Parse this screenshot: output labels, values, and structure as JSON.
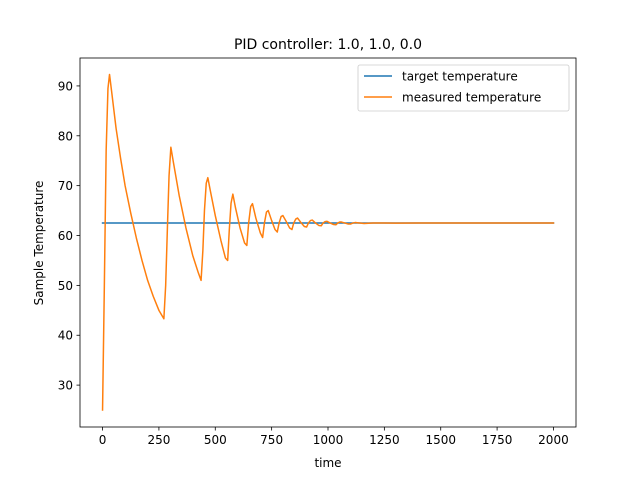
{
  "chart_data": {
    "type": "line",
    "title": "PID controller: 1.0, 1.0, 0.0",
    "xlabel": "time",
    "ylabel": "Sample Temperature",
    "xlim": [
      -100,
      2100
    ],
    "ylim": [
      21.6,
      95.6
    ],
    "xticks": [
      0,
      250,
      500,
      750,
      1000,
      1250,
      1500,
      1750,
      2000
    ],
    "yticks": [
      30,
      40,
      50,
      60,
      70,
      80,
      90
    ],
    "grid": false,
    "legend": "top-right",
    "series": [
      {
        "name": "target temperature",
        "color": "#1f77b4",
        "points": [
          [
            0,
            62.5
          ],
          [
            2000,
            62.5
          ]
        ]
      },
      {
        "name": "measured temperature",
        "color": "#ff7f0e",
        "points": [
          [
            0,
            25.0
          ],
          [
            8,
            50.0
          ],
          [
            16,
            77.0
          ],
          [
            24,
            89.5
          ],
          [
            31,
            92.3
          ],
          [
            40,
            89.0
          ],
          [
            60,
            81.5
          ],
          [
            80,
            75.5
          ],
          [
            100,
            70.0
          ],
          [
            125,
            64.5
          ],
          [
            150,
            59.5
          ],
          [
            175,
            55.0
          ],
          [
            200,
            51.0
          ],
          [
            225,
            47.8
          ],
          [
            250,
            45.0
          ],
          [
            272,
            43.3
          ],
          [
            280,
            50.0
          ],
          [
            288,
            62.0
          ],
          [
            295,
            72.0
          ],
          [
            303,
            77.7
          ],
          [
            315,
            74.5
          ],
          [
            340,
            68.0
          ],
          [
            370,
            61.5
          ],
          [
            400,
            56.0
          ],
          [
            425,
            52.5
          ],
          [
            437,
            51.0
          ],
          [
            445,
            57.0
          ],
          [
            452,
            65.0
          ],
          [
            460,
            70.5
          ],
          [
            467,
            71.6
          ],
          [
            478,
            69.0
          ],
          [
            500,
            64.0
          ],
          [
            525,
            59.0
          ],
          [
            545,
            55.5
          ],
          [
            555,
            55.0
          ],
          [
            562,
            61.0
          ],
          [
            570,
            66.5
          ],
          [
            578,
            68.3
          ],
          [
            590,
            65.5
          ],
          [
            610,
            61.5
          ],
          [
            630,
            58.5
          ],
          [
            640,
            58.0
          ],
          [
            648,
            62.5
          ],
          [
            657,
            65.8
          ],
          [
            665,
            66.4
          ],
          [
            680,
            63.5
          ],
          [
            700,
            60.5
          ],
          [
            710,
            59.6
          ],
          [
            718,
            62.5
          ],
          [
            727,
            64.7
          ],
          [
            735,
            65.0
          ],
          [
            750,
            63.0
          ],
          [
            765,
            61.2
          ],
          [
            775,
            60.7
          ],
          [
            783,
            62.5
          ],
          [
            792,
            63.8
          ],
          [
            800,
            64.0
          ],
          [
            815,
            62.8
          ],
          [
            830,
            61.5
          ],
          [
            840,
            61.2
          ],
          [
            848,
            62.5
          ],
          [
            857,
            63.3
          ],
          [
            865,
            63.5
          ],
          [
            880,
            62.6
          ],
          [
            895,
            61.8
          ],
          [
            905,
            61.7
          ],
          [
            913,
            62.5
          ],
          [
            922,
            63.0
          ],
          [
            930,
            63.1
          ],
          [
            945,
            62.5
          ],
          [
            960,
            62.0
          ],
          [
            970,
            61.95
          ],
          [
            978,
            62.5
          ],
          [
            987,
            62.8
          ],
          [
            995,
            62.85
          ],
          [
            1010,
            62.5
          ],
          [
            1025,
            62.2
          ],
          [
            1035,
            62.15
          ],
          [
            1043,
            62.5
          ],
          [
            1052,
            62.7
          ],
          [
            1060,
            62.7
          ],
          [
            1075,
            62.5
          ],
          [
            1090,
            62.3
          ],
          [
            1100,
            62.3
          ],
          [
            1110,
            62.5
          ],
          [
            1120,
            62.6
          ],
          [
            1140,
            62.5
          ],
          [
            1160,
            62.4
          ],
          [
            1180,
            62.45
          ],
          [
            1200,
            62.5
          ],
          [
            1250,
            62.52
          ],
          [
            1300,
            62.48
          ],
          [
            1400,
            62.5
          ],
          [
            1500,
            62.5
          ],
          [
            1750,
            62.5
          ],
          [
            2000,
            62.5
          ]
        ]
      }
    ]
  }
}
